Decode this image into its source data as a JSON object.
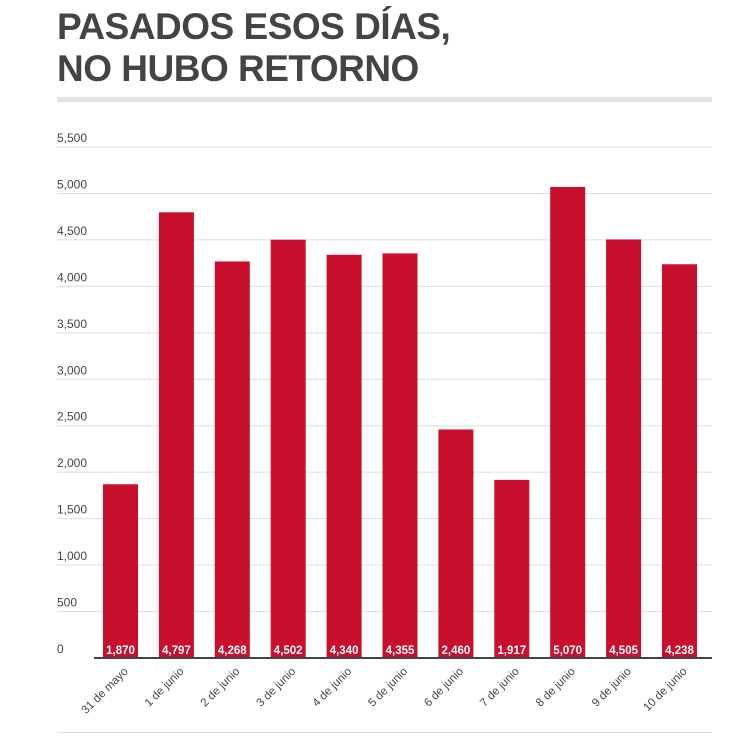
{
  "header": {
    "title_line1": "PASADOS ESOS DÍAS,",
    "title_line2": "NO HUBO RETORNO"
  },
  "chart_data": {
    "type": "bar",
    "categories": [
      "31 de mayo",
      "1 de junio",
      "2 de junio",
      "3 de junio",
      "4 de junio",
      "5 de junio",
      "6 de junio",
      "7 de junio",
      "8 de junio",
      "9 de junio",
      "10 de junio"
    ],
    "values": [
      1870,
      4797,
      4268,
      4502,
      4340,
      4355,
      2460,
      1917,
      5070,
      4505,
      4238
    ],
    "value_labels": [
      "1,870",
      "4,797",
      "4,268",
      "4,502",
      "4,340",
      "4,355",
      "2,460",
      "1,917",
      "5,070",
      "4,505",
      "4,238"
    ],
    "y_ticks": [
      0,
      500,
      1000,
      1500,
      2000,
      2500,
      3000,
      3500,
      4000,
      4500,
      5000,
      5500
    ],
    "y_tick_labels": [
      "0",
      "500",
      "1,000",
      "1,500",
      "2,000",
      "2,500",
      "3,000",
      "3,500",
      "4,000",
      "4,500",
      "5,000",
      "5,500"
    ],
    "ylim": [
      0,
      5500
    ],
    "grid": true,
    "legend": "none",
    "title": "PASADOS ESOS DÍAS, NO HUBO RETORNO",
    "xlabel": "",
    "ylabel": "",
    "colors": {
      "bar": "#c8102e",
      "grid": "#dddddd",
      "axis": "#444444",
      "text": "#444444"
    }
  }
}
